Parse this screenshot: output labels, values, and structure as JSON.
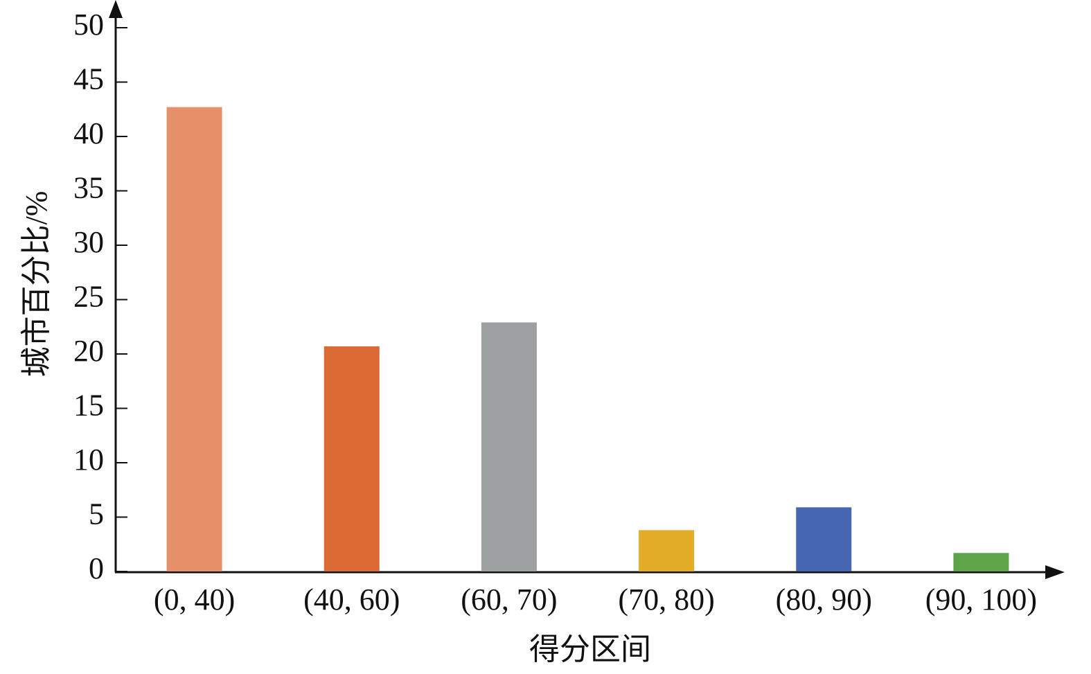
{
  "chart_data": {
    "type": "bar",
    "x_label": "得分区间",
    "y_label": "城市百分比/%",
    "categories": [
      "(0, 40)",
      "(40, 60)",
      "(60, 70)",
      "(70, 80)",
      "(80, 90)",
      "(90, 100)"
    ],
    "values": [
      42.7,
      20.7,
      22.9,
      3.8,
      5.9,
      1.7
    ],
    "colors": [
      "#e6906a",
      "#dc6a35",
      "#9ca0a1",
      "#e3ac29",
      "#4567b1",
      "#5ea347"
    ],
    "ylim": [
      0,
      50
    ],
    "yticks": [
      0,
      5,
      10,
      15,
      20,
      25,
      30,
      35,
      40,
      45,
      50
    ],
    "grid": false
  }
}
